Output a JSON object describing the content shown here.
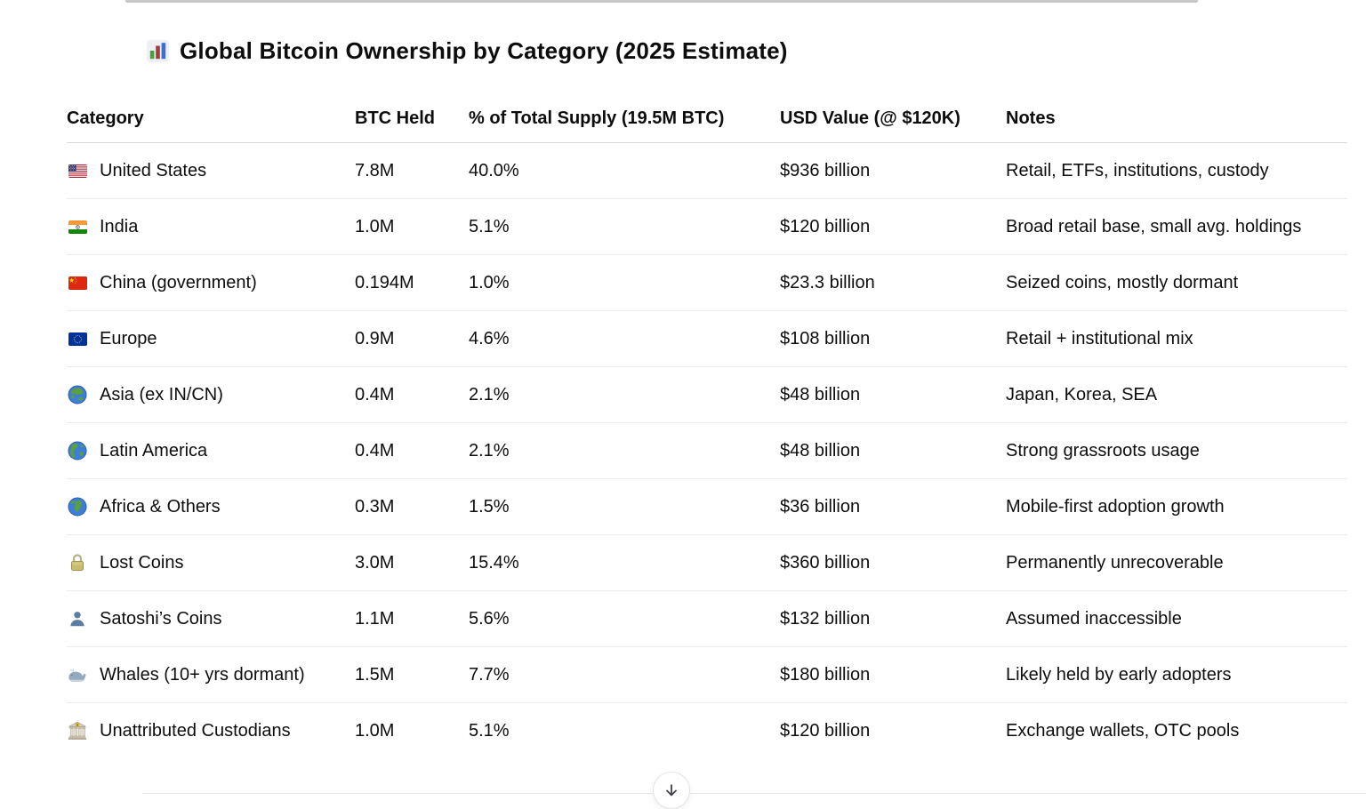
{
  "title": {
    "icon": "bar-chart-icon",
    "text": "Global Bitcoin Ownership by Category (2025 Estimate)"
  },
  "table": {
    "columns": [
      "Category",
      "BTC Held",
      "% of Total Supply (19.5M BTC)",
      "USD Value (@ $120K)",
      "Notes"
    ],
    "rows": [
      {
        "icon": "us-flag-icon",
        "category": "United States",
        "btc_held": "7.8M",
        "pct_of_supply": "40.0%",
        "usd_value": "$936 billion",
        "notes": "Retail, ETFs, institutions, custody"
      },
      {
        "icon": "india-flag-icon",
        "category": "India",
        "btc_held": "1.0M",
        "pct_of_supply": "5.1%",
        "usd_value": "$120 billion",
        "notes": "Broad retail base, small avg. holdings"
      },
      {
        "icon": "china-flag-icon",
        "category": "China (government)",
        "btc_held": "0.194M",
        "pct_of_supply": "1.0%",
        "usd_value": "$23.3 billion",
        "notes": "Seized coins, mostly dormant"
      },
      {
        "icon": "eu-flag-icon",
        "category": "Europe",
        "btc_held": "0.9M",
        "pct_of_supply": "4.6%",
        "usd_value": "$108 billion",
        "notes": "Retail + institutional mix"
      },
      {
        "icon": "globe-asia-icon",
        "category": "Asia (ex IN/CN)",
        "btc_held": "0.4M",
        "pct_of_supply": "2.1%",
        "usd_value": "$48 billion",
        "notes": "Japan, Korea, SEA"
      },
      {
        "icon": "globe-americas-icon",
        "category": "Latin America",
        "btc_held": "0.4M",
        "pct_of_supply": "2.1%",
        "usd_value": "$48 billion",
        "notes": "Strong grassroots usage"
      },
      {
        "icon": "globe-africa-icon",
        "category": "Africa & Others",
        "btc_held": "0.3M",
        "pct_of_supply": "1.5%",
        "usd_value": "$36 billion",
        "notes": "Mobile-first adoption growth"
      },
      {
        "icon": "lock-icon",
        "category": "Lost Coins",
        "btc_held": "3.0M",
        "pct_of_supply": "15.4%",
        "usd_value": "$360 billion",
        "notes": "Permanently unrecoverable"
      },
      {
        "icon": "bust-icon",
        "category": "Satoshi’s Coins",
        "btc_held": "1.1M",
        "pct_of_supply": "5.6%",
        "usd_value": "$132 billion",
        "notes": "Assumed inaccessible"
      },
      {
        "icon": "whale-icon",
        "category": "Whales (10+ yrs dormant)",
        "btc_held": "1.5M",
        "pct_of_supply": "7.7%",
        "usd_value": "$180 billion",
        "notes": "Likely held by early adopters"
      },
      {
        "icon": "bank-icon",
        "category": "Unattributed Custodians",
        "btc_held": "1.0M",
        "pct_of_supply": "5.1%",
        "usd_value": "$120 billion",
        "notes": "Exchange wallets, OTC pools"
      }
    ]
  },
  "scroll_button": {
    "icon": "arrow-down-icon"
  },
  "colors": {
    "text": "#0d0d0d",
    "header_divider": "#d7d7d7",
    "row_divider": "#ececec",
    "page_background": "#ffffff"
  }
}
